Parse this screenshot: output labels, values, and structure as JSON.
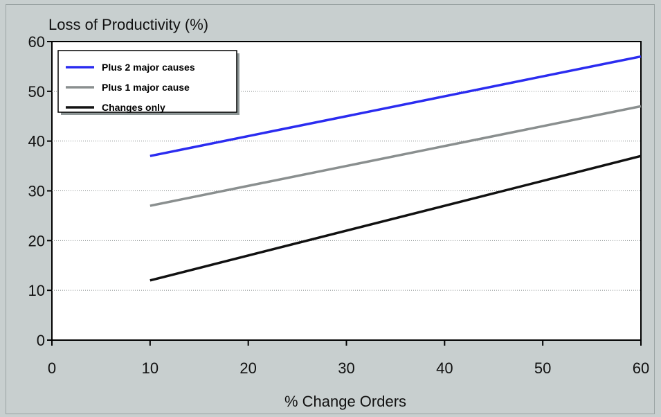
{
  "chart_data": {
    "type": "line",
    "title": "",
    "ylabel": "Loss of Productivity (%)",
    "xlabel": "% Change Orders",
    "xlim": [
      0,
      60
    ],
    "ylim": [
      0,
      60
    ],
    "xticks": [
      0,
      10,
      20,
      30,
      40,
      50,
      60
    ],
    "yticks": [
      0,
      10,
      20,
      30,
      40,
      50,
      60
    ],
    "grid": "horizontal dotted",
    "legend_position": "top-left",
    "series": [
      {
        "name": "Plus 2 major causes",
        "color": "#2b2cf0",
        "x": [
          10,
          60
        ],
        "y": [
          37,
          57
        ]
      },
      {
        "name": "Plus 1 major cause",
        "color": "#8a8f8f",
        "x": [
          10,
          60
        ],
        "y": [
          27,
          47
        ]
      },
      {
        "name": "Changes only",
        "color": "#111111",
        "x": [
          10,
          60
        ],
        "y": [
          12,
          37
        ]
      }
    ]
  }
}
